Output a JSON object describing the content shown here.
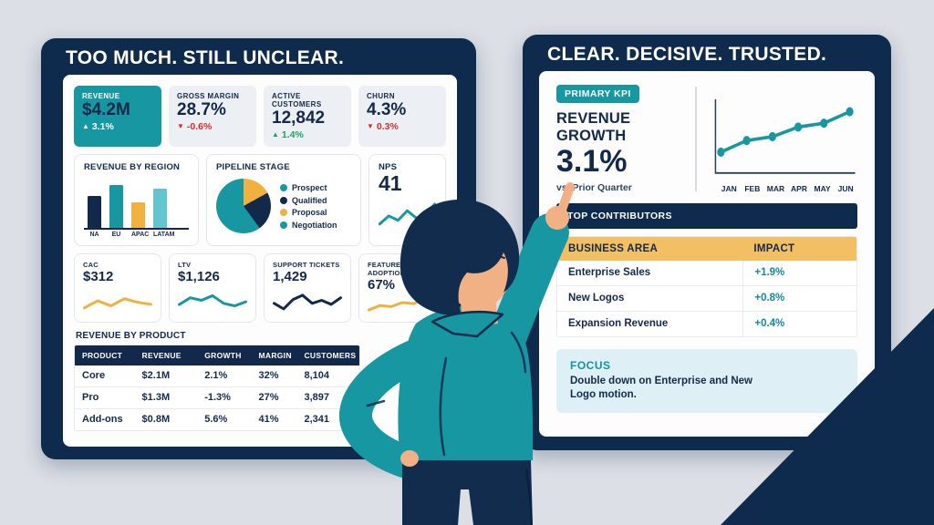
{
  "colors": {
    "navy": "#0e2a4c",
    "teal": "#1697a1",
    "light_teal": "#63c5cf",
    "amber": "#f0b13e",
    "amber_header": "#f3bf63",
    "red": "#d12f2f",
    "green": "#1fa061",
    "background": "#dcdfe5",
    "skin": "#f2b184",
    "focus_bg": "#def0f6"
  },
  "left_panel": {
    "title": "TOO MUCH. STILL UNCLEAR.",
    "kpis": [
      {
        "label": "REVENUE",
        "value": "$4.2M",
        "delta": "3.1%",
        "direction": "up",
        "highlight": true
      },
      {
        "label": "GROSS MARGIN",
        "value": "28.7%",
        "delta": "-0.6%",
        "direction": "down"
      },
      {
        "label": "ACTIVE CUSTOMERS",
        "value": "12,842",
        "delta": "1.4%",
        "direction": "up"
      },
      {
        "label": "CHURN",
        "value": "4.3%",
        "delta": "0.3%",
        "direction": "down"
      }
    ],
    "revenue_by_region": {
      "title": "REVENUE BY REGION",
      "categories": [
        "NA",
        "EU",
        "APAC",
        "LATAM"
      ],
      "values": [
        62,
        82,
        48,
        75
      ],
      "colors": [
        "#13294b",
        "#1697a1",
        "#f0b13e",
        "#63c5cf"
      ]
    },
    "pipeline_stage": {
      "title": "PIPELINE STAGE",
      "legend": [
        {
          "label": "Prospect",
          "color": "#1697a1"
        },
        {
          "label": "Qualified",
          "color": "#13294b"
        },
        {
          "label": "Proposal",
          "color": "#f0b13e"
        },
        {
          "label": "Negotiation",
          "color": "#1697a1"
        }
      ],
      "slices": [
        {
          "label": "Proposal",
          "pct": 17,
          "color": "#f0b13e"
        },
        {
          "label": "Qualified",
          "pct": 23,
          "color": "#13294b"
        },
        {
          "label": "Prospect / Negotiation",
          "pct": 60,
          "color": "#1697a1"
        }
      ]
    },
    "nps": {
      "title": "NPS",
      "value": "41",
      "color": "#1697a1",
      "spark": [
        30,
        52,
        40,
        66,
        46,
        58,
        84
      ]
    },
    "metrics": [
      {
        "label": "CAC",
        "value": "$312",
        "color": "#f0b13e",
        "spark": [
          22,
          50,
          30,
          58,
          44,
          36
        ]
      },
      {
        "label": "LTV",
        "value": "$1,126",
        "color": "#1697a1",
        "spark": [
          35,
          62,
          52,
          70,
          40,
          30,
          46
        ]
      },
      {
        "label": "SUPPORT TICKETS",
        "value": "1,429",
        "color": "#13294b",
        "spark": [
          40,
          18,
          55,
          72,
          40,
          52,
          36,
          62
        ]
      },
      {
        "label": "FEATURE ADOPTION",
        "value": "67%",
        "color": "#f0b13e",
        "spark": [
          22,
          46,
          40,
          62,
          56,
          78,
          66
        ]
      }
    ],
    "product_table": {
      "title": "REVENUE BY PRODUCT",
      "headers": [
        "PRODUCT",
        "REVENUE",
        "GROWTH",
        "MARGIN",
        "CUSTOMERS"
      ],
      "rows": [
        {
          "product": "Core",
          "revenue": "$2.1M",
          "growth": "2.1%",
          "growth_dir": "up",
          "margin": "32%",
          "customers": "8,104"
        },
        {
          "product": "Pro",
          "revenue": "$1.3M",
          "growth": "-1.3%",
          "growth_dir": "down",
          "margin": "27%",
          "customers": "3,897"
        },
        {
          "product": "Add-ons",
          "revenue": "$0.8M",
          "growth": "5.6%",
          "growth_dir": "up",
          "margin": "41%",
          "customers": "2,341"
        }
      ]
    }
  },
  "right_panel": {
    "title": "CLEAR. DECISIVE. TRUSTED.",
    "kpi": {
      "badge": "PRIMARY KPI",
      "label": "REVENUE GROWTH",
      "value": "3.1%",
      "subtitle": "vs. Prior Quarter"
    },
    "kpi_chart": {
      "months": [
        "JAN",
        "FEB",
        "MAR",
        "APR",
        "MAY",
        "JUN"
      ],
      "values": [
        1.0,
        1.6,
        1.8,
        2.3,
        2.5,
        3.1
      ],
      "color": "#1697a1"
    },
    "contributors": {
      "title": "TOP CONTRIBUTORS",
      "headers": [
        "BUSINESS AREA",
        "IMPACT"
      ],
      "rows": [
        {
          "area": "Enterprise Sales",
          "impact": "+1.9%"
        },
        {
          "area": "New Logos",
          "impact": "+0.8%"
        },
        {
          "area": "Expansion Revenue",
          "impact": "+0.4%"
        }
      ]
    },
    "focus": {
      "title": "FOCUS",
      "text": "Double down on Enterprise and New Logo motion."
    }
  },
  "chart_data": [
    {
      "type": "bar",
      "title": "REVENUE BY REGION",
      "categories": [
        "NA",
        "EU",
        "APAC",
        "LATAM"
      ],
      "values": [
        62,
        82,
        48,
        75
      ],
      "xlabel": "",
      "ylabel": "relative revenue (unlabeled axis)",
      "ylim": [
        0,
        100
      ],
      "grid": false
    },
    {
      "type": "pie",
      "title": "PIPELINE STAGE",
      "categories": [
        "Proposal",
        "Qualified",
        "Prospect / Negotiation"
      ],
      "values": [
        17,
        23,
        60
      ],
      "legend_position": "right",
      "legend": [
        "Prospect",
        "Qualified",
        "Proposal",
        "Negotiation"
      ]
    },
    {
      "type": "line",
      "title": "REVENUE GROWTH (PRIMARY KPI)",
      "x": [
        "JAN",
        "FEB",
        "MAR",
        "APR",
        "MAY",
        "JUN"
      ],
      "values": [
        1.0,
        1.6,
        1.8,
        2.3,
        2.5,
        3.1
      ],
      "xlabel": "month",
      "ylabel": "growth (unlabeled axis, ends at 3.1%)",
      "grid": false,
      "markers": true
    },
    {
      "type": "line",
      "title": "sparklines (unlabeled trend lines)",
      "series": [
        {
          "name": "NPS",
          "values": [
            30,
            52,
            40,
            66,
            46,
            58,
            84
          ]
        },
        {
          "name": "CAC",
          "values": [
            22,
            50,
            30,
            58,
            44,
            36
          ]
        },
        {
          "name": "LTV",
          "values": [
            35,
            62,
            52,
            70,
            40,
            30,
            46
          ]
        },
        {
          "name": "SUPPORT TICKETS",
          "values": [
            40,
            18,
            55,
            72,
            40,
            52,
            36,
            62
          ]
        },
        {
          "name": "FEATURE ADOPTION",
          "values": [
            22,
            46,
            40,
            62,
            56,
            78,
            66
          ]
        }
      ]
    },
    {
      "type": "table",
      "title": "REVENUE BY PRODUCT",
      "columns": [
        "PRODUCT",
        "REVENUE",
        "GROWTH",
        "MARGIN",
        "CUSTOMERS"
      ],
      "rows": [
        [
          "Core",
          "$2.1M",
          "2.1%",
          "32%",
          "8,104"
        ],
        [
          "Pro",
          "$1.3M",
          "-1.3%",
          "27%",
          "3,897"
        ],
        [
          "Add-ons",
          "$0.8M",
          "5.6%",
          "41%",
          "2,341"
        ]
      ]
    },
    {
      "type": "table",
      "title": "TOP CONTRIBUTORS",
      "columns": [
        "BUSINESS AREA",
        "IMPACT"
      ],
      "rows": [
        [
          "Enterprise Sales",
          "+1.9%"
        ],
        [
          "New Logos",
          "+0.8%"
        ],
        [
          "Expansion Revenue",
          "+0.4%"
        ]
      ]
    }
  ]
}
